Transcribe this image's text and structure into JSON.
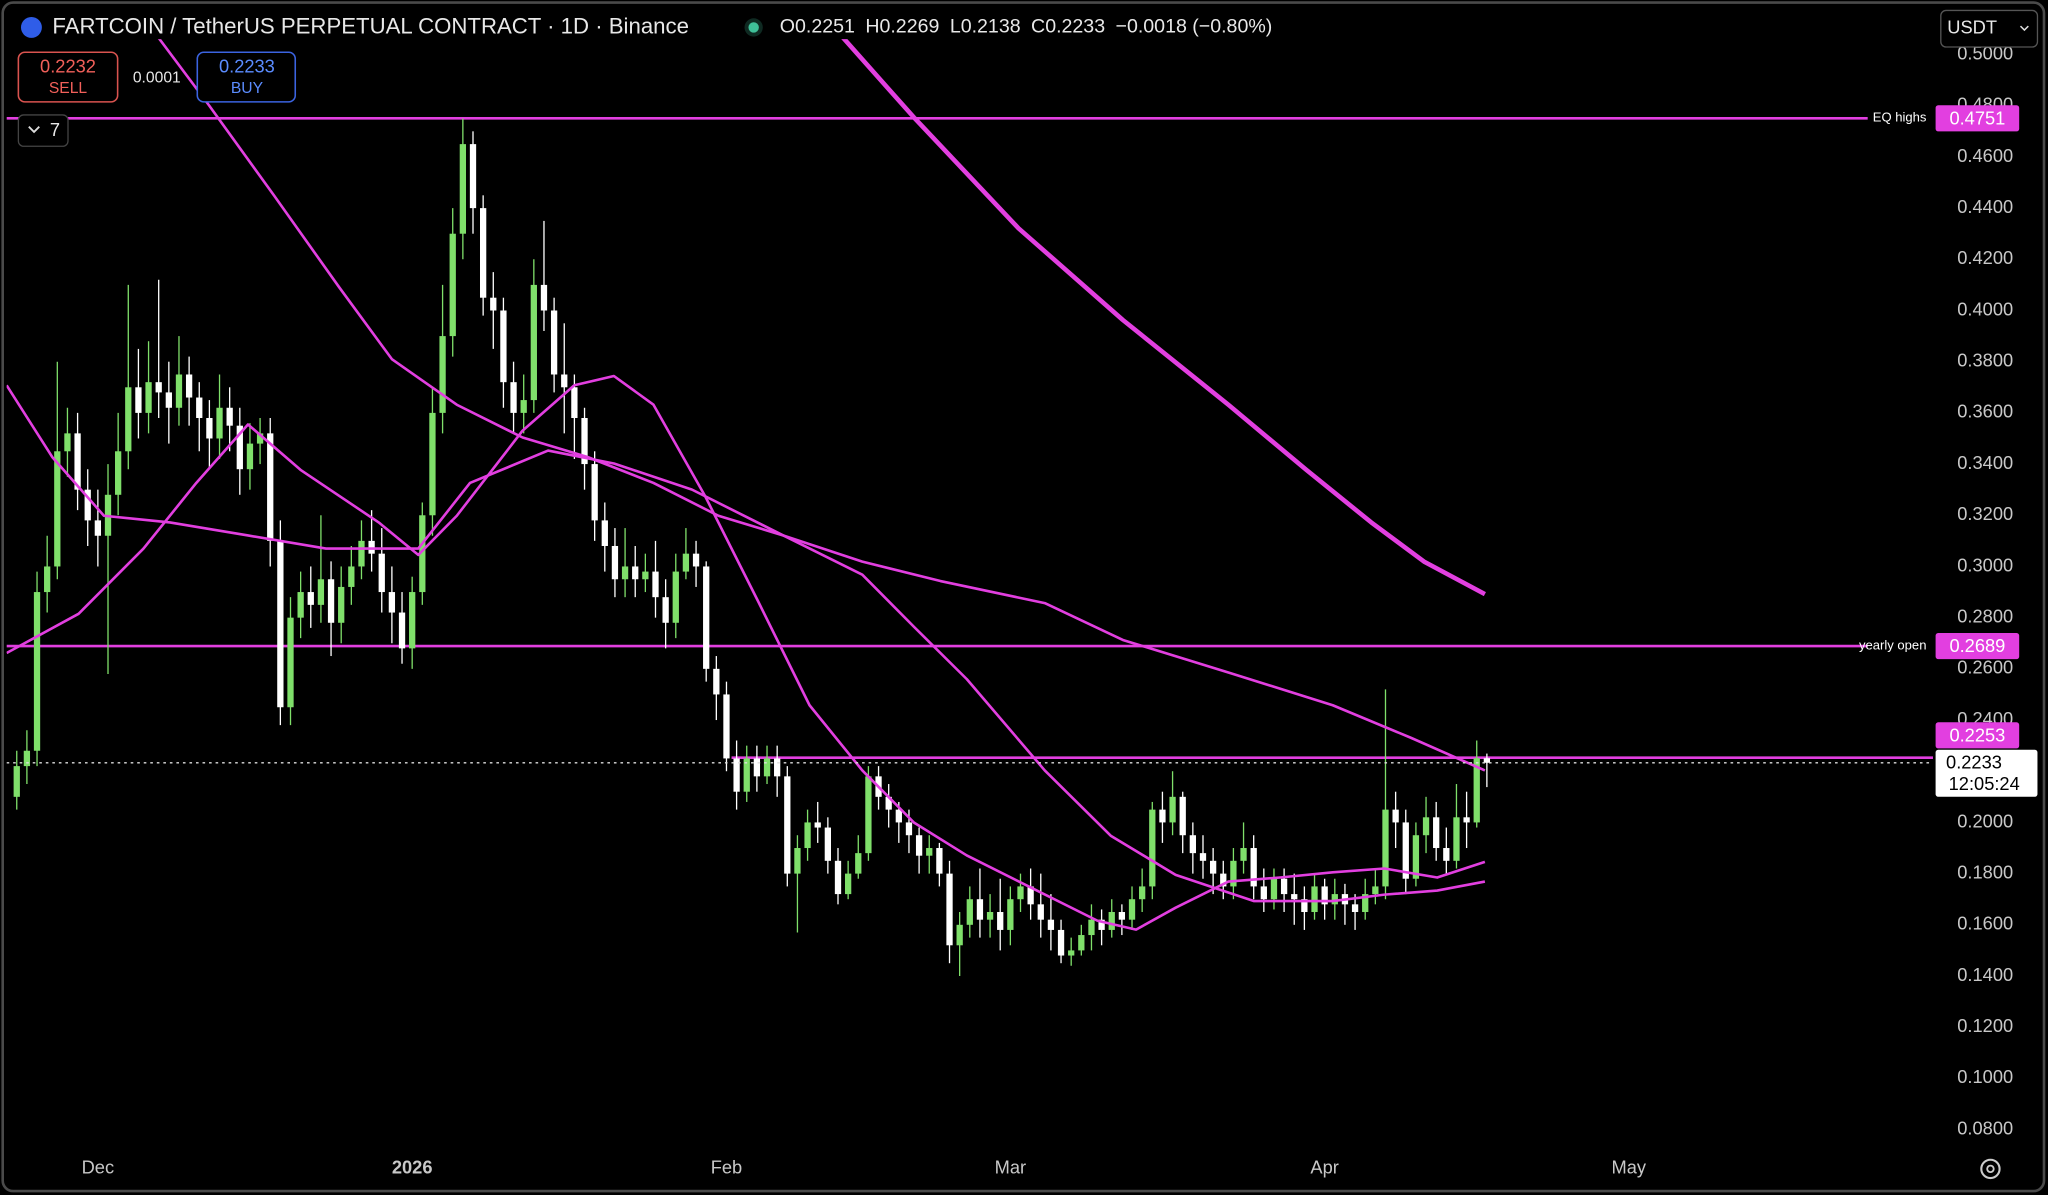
{
  "header": {
    "title": "FARTCOIN / TetherUS PERPETUAL CONTRACT · 1D · Binance",
    "ohlc_labels": [
      "O",
      "H",
      "L",
      "C"
    ],
    "change": "−0.0018 (−0.80%)"
  },
  "trade": {
    "sell_price": "0.2232",
    "sell": "SELL",
    "spread": "0.0001",
    "buy_price": "0.2233",
    "buy": "BUY"
  },
  "indicators_count": "7",
  "currency": "USDT",
  "countdown": "12:05:24",
  "chart_data": {
    "type": "candlestick",
    "up_color": "#7fdf6a",
    "down_color": "#ffffff",
    "level_color": "#e23fe0",
    "xlim": [
      -1,
      189
    ],
    "ylim": [
      0.0723,
      0.506
    ],
    "xticks": [
      {
        "value": 8,
        "label": "Dec"
      },
      {
        "value": 39,
        "label": "2026"
      },
      {
        "value": 70,
        "label": "Feb"
      },
      {
        "value": 98,
        "label": "Mar"
      },
      {
        "value": 129,
        "label": "Apr"
      },
      {
        "value": 159,
        "label": "May"
      }
    ],
    "yticks": [
      {
        "value": 0.08,
        "label": "0.0800"
      },
      {
        "value": 0.1,
        "label": "0.1000"
      },
      {
        "value": 0.12,
        "label": "0.1200"
      },
      {
        "value": 0.14,
        "label": "0.1400"
      },
      {
        "value": 0.16,
        "label": "0.1600"
      },
      {
        "value": 0.18,
        "label": "0.1800"
      },
      {
        "value": 0.2,
        "label": "0.2000"
      },
      {
        "value": 0.22,
        "label": "0.2200"
      },
      {
        "value": 0.24,
        "label": "0.2400"
      },
      {
        "value": 0.26,
        "label": "0.2600"
      },
      {
        "value": 0.28,
        "label": "0.2800"
      },
      {
        "value": 0.3,
        "label": "0.3000"
      },
      {
        "value": 0.32,
        "label": "0.3200"
      },
      {
        "value": 0.34,
        "label": "0.3400"
      },
      {
        "value": 0.36,
        "label": "0.3600"
      },
      {
        "value": 0.38,
        "label": "0.3800"
      },
      {
        "value": 0.4,
        "label": "0.4000"
      },
      {
        "value": 0.42,
        "label": "0.4200"
      },
      {
        "value": 0.44,
        "label": "0.4400"
      },
      {
        "value": 0.46,
        "label": "0.4600"
      },
      {
        "value": 0.48,
        "label": "0.4800"
      },
      {
        "value": 0.5,
        "label": "0.5000"
      }
    ],
    "open": [
      0.21,
      0.222,
      0.228,
      0.29,
      0.3,
      0.345,
      0.352,
      0.33,
      0.318,
      0.312,
      0.328,
      0.345,
      0.37,
      0.36,
      0.372,
      0.368,
      0.362,
      0.375,
      0.366,
      0.358,
      0.35,
      0.362,
      0.355,
      0.338,
      0.348,
      0.352,
      0.31,
      0.245,
      0.28,
      0.29,
      0.285,
      0.295,
      0.278,
      0.292,
      0.3,
      0.31,
      0.305,
      0.29,
      0.282,
      0.268,
      0.29,
      0.32,
      0.36,
      0.39,
      0.43,
      0.465,
      0.44,
      0.405,
      0.4,
      0.372,
      0.36,
      0.365,
      0.41,
      0.4,
      0.375,
      0.37,
      0.358,
      0.34,
      0.318,
      0.308,
      0.295,
      0.3,
      0.295,
      0.298,
      0.288,
      0.278,
      0.298,
      0.305,
      0.3,
      0.26,
      0.25,
      0.225,
      0.212,
      0.225,
      0.218,
      0.225,
      0.218,
      0.18,
      0.19,
      0.2,
      0.198,
      0.185,
      0.172,
      0.18,
      0.188,
      0.218,
      0.21,
      0.205,
      0.2,
      0.195,
      0.187,
      0.19,
      0.18,
      0.152,
      0.16,
      0.17,
      0.162,
      0.165,
      0.158,
      0.17,
      0.175,
      0.168,
      0.162,
      0.158,
      0.148,
      0.15,
      0.156,
      0.162,
      0.158,
      0.165,
      0.162,
      0.17,
      0.175,
      0.205,
      0.2,
      0.21,
      0.195,
      0.188,
      0.185,
      0.18,
      0.175,
      0.185,
      0.19,
      0.175,
      0.17,
      0.178,
      0.172,
      0.17,
      0.165,
      0.175,
      0.168,
      0.172,
      0.168,
      0.165,
      0.172,
      0.175,
      0.205,
      0.2,
      0.178,
      0.195,
      0.202,
      0.19,
      0.185,
      0.202,
      0.2,
      0.2251
    ],
    "high": [
      0.228,
      0.236,
      0.298,
      0.312,
      0.38,
      0.362,
      0.36,
      0.338,
      0.33,
      0.34,
      0.36,
      0.41,
      0.385,
      0.388,
      0.412,
      0.38,
      0.39,
      0.382,
      0.372,
      0.365,
      0.375,
      0.37,
      0.362,
      0.356,
      0.358,
      0.358,
      0.318,
      0.288,
      0.298,
      0.3,
      0.32,
      0.302,
      0.3,
      0.308,
      0.318,
      0.322,
      0.315,
      0.3,
      0.29,
      0.296,
      0.325,
      0.37,
      0.41,
      0.44,
      0.475,
      0.47,
      0.445,
      0.415,
      0.405,
      0.38,
      0.375,
      0.42,
      0.435,
      0.405,
      0.395,
      0.375,
      0.362,
      0.345,
      0.325,
      0.315,
      0.315,
      0.308,
      0.305,
      0.31,
      0.295,
      0.305,
      0.315,
      0.31,
      0.302,
      0.265,
      0.255,
      0.232,
      0.23,
      0.23,
      0.23,
      0.23,
      0.222,
      0.195,
      0.205,
      0.208,
      0.202,
      0.19,
      0.185,
      0.195,
      0.222,
      0.222,
      0.215,
      0.208,
      0.205,
      0.198,
      0.195,
      0.192,
      0.185,
      0.165,
      0.175,
      0.182,
      0.172,
      0.178,
      0.175,
      0.18,
      0.182,
      0.18,
      0.172,
      0.162,
      0.155,
      0.16,
      0.168,
      0.166,
      0.17,
      0.168,
      0.175,
      0.182,
      0.208,
      0.212,
      0.22,
      0.212,
      0.2,
      0.195,
      0.19,
      0.185,
      0.19,
      0.2,
      0.195,
      0.182,
      0.182,
      0.182,
      0.18,
      0.175,
      0.18,
      0.178,
      0.178,
      0.176,
      0.172,
      0.178,
      0.182,
      0.252,
      0.212,
      0.205,
      0.2,
      0.21,
      0.208,
      0.198,
      0.215,
      0.212,
      0.232,
      0.2269
    ],
    "low": [
      0.205,
      0.215,
      0.222,
      0.282,
      0.295,
      0.335,
      0.322,
      0.308,
      0.3,
      0.258,
      0.32,
      0.338,
      0.35,
      0.352,
      0.358,
      0.348,
      0.355,
      0.355,
      0.345,
      0.338,
      0.342,
      0.345,
      0.328,
      0.33,
      0.34,
      0.3,
      0.238,
      0.238,
      0.272,
      0.276,
      0.278,
      0.265,
      0.27,
      0.285,
      0.295,
      0.298,
      0.282,
      0.27,
      0.262,
      0.26,
      0.285,
      0.312,
      0.352,
      0.382,
      0.42,
      0.43,
      0.398,
      0.385,
      0.362,
      0.352,
      0.352,
      0.36,
      0.392,
      0.368,
      0.352,
      0.342,
      0.33,
      0.31,
      0.298,
      0.288,
      0.288,
      0.288,
      0.29,
      0.28,
      0.268,
      0.272,
      0.295,
      0.292,
      0.255,
      0.24,
      0.22,
      0.205,
      0.208,
      0.212,
      0.215,
      0.21,
      0.175,
      0.157,
      0.185,
      0.192,
      0.18,
      0.168,
      0.17,
      0.178,
      0.185,
      0.205,
      0.198,
      0.192,
      0.188,
      0.18,
      0.18,
      0.175,
      0.145,
      0.14,
      0.155,
      0.155,
      0.155,
      0.15,
      0.152,
      0.165,
      0.162,
      0.155,
      0.15,
      0.145,
      0.144,
      0.148,
      0.15,
      0.152,
      0.155,
      0.156,
      0.158,
      0.165,
      0.17,
      0.192,
      0.195,
      0.188,
      0.18,
      0.178,
      0.172,
      0.17,
      0.17,
      0.18,
      0.17,
      0.165,
      0.166,
      0.165,
      0.16,
      0.158,
      0.162,
      0.162,
      0.162,
      0.16,
      0.158,
      0.162,
      0.168,
      0.17,
      0.19,
      0.172,
      0.175,
      0.188,
      0.185,
      0.18,
      0.182,
      0.19,
      0.198,
      0.2138
    ],
    "close": [
      0.222,
      0.228,
      0.29,
      0.3,
      0.345,
      0.352,
      0.33,
      0.318,
      0.312,
      0.328,
      0.345,
      0.37,
      0.36,
      0.372,
      0.368,
      0.362,
      0.375,
      0.366,
      0.358,
      0.35,
      0.362,
      0.355,
      0.338,
      0.348,
      0.352,
      0.31,
      0.245,
      0.28,
      0.29,
      0.285,
      0.295,
      0.278,
      0.292,
      0.3,
      0.31,
      0.305,
      0.29,
      0.282,
      0.268,
      0.29,
      0.32,
      0.36,
      0.39,
      0.43,
      0.465,
      0.44,
      0.405,
      0.4,
      0.372,
      0.36,
      0.365,
      0.41,
      0.4,
      0.375,
      0.37,
      0.358,
      0.34,
      0.318,
      0.308,
      0.295,
      0.3,
      0.295,
      0.298,
      0.288,
      0.278,
      0.298,
      0.305,
      0.3,
      0.26,
      0.25,
      0.225,
      0.212,
      0.225,
      0.218,
      0.225,
      0.218,
      0.18,
      0.19,
      0.2,
      0.198,
      0.185,
      0.172,
      0.18,
      0.188,
      0.218,
      0.21,
      0.205,
      0.2,
      0.195,
      0.187,
      0.19,
      0.18,
      0.152,
      0.16,
      0.17,
      0.162,
      0.165,
      0.158,
      0.17,
      0.175,
      0.168,
      0.162,
      0.158,
      0.148,
      0.15,
      0.156,
      0.162,
      0.158,
      0.165,
      0.162,
      0.17,
      0.175,
      0.205,
      0.2,
      0.21,
      0.195,
      0.188,
      0.185,
      0.18,
      0.175,
      0.185,
      0.19,
      0.175,
      0.17,
      0.178,
      0.172,
      0.17,
      0.165,
      0.175,
      0.168,
      0.172,
      0.168,
      0.165,
      0.172,
      0.175,
      0.205,
      0.2,
      0.178,
      0.195,
      0.202,
      0.19,
      0.185,
      0.202,
      0.2,
      0.2251,
      0.2233
    ],
    "lines": [
      {
        "color": "#e23fe0",
        "width": 2,
        "x": [
          -1.0,
          6.1,
          12.5,
          17.7,
          22.8,
          28.0,
          35.7,
          39.6,
          43.4,
          49.9,
          55.0,
          58.9,
          62.8,
          67.9,
          73.1,
          78.2,
          83.4,
          88.5,
          93.7,
          100.1,
          106.6,
          110.4,
          114.3,
          119.5,
          124.6,
          129.8,
          134.9,
          140.1,
          144.8
        ],
        "values": [
          0.2662,
          0.2815,
          0.307,
          0.3326,
          0.3555,
          0.3377,
          0.3172,
          0.3045,
          0.3198,
          0.3531,
          0.3708,
          0.3744,
          0.3632,
          0.3274,
          0.2866,
          0.2458,
          0.2203,
          0.1999,
          0.1871,
          0.1744,
          0.1616,
          0.1581,
          0.1667,
          0.1769,
          0.1785,
          0.1805,
          0.182,
          0.1785,
          0.1846
        ]
      },
      {
        "color": "#e23fe0",
        "width": 2,
        "x": [
          -1.0,
          3.5,
          8.6,
          15.1,
          22.8,
          30.5,
          39.6,
          44.7,
          52.4,
          58.9,
          66.6,
          75.6,
          83.4,
          91.1,
          101.4,
          109.1,
          119.5,
          129.8,
          137.5,
          144.8
        ],
        "values": [
          0.3708,
          0.3428,
          0.3198,
          0.3172,
          0.3121,
          0.307,
          0.307,
          0.3326,
          0.3453,
          0.3402,
          0.33,
          0.3121,
          0.3019,
          0.2943,
          0.2857,
          0.2713,
          0.2586,
          0.2458,
          0.2331,
          0.2203
        ]
      },
      {
        "color": "#e23fe0",
        "width": 2,
        "x": [
          11.2,
          18.9,
          25.4,
          31.8,
          37.0,
          43.4,
          49.9,
          56.3,
          62.8,
          69.2,
          75.6,
          83.4,
          88.5,
          93.7,
          101.4,
          107.9,
          114.3,
          122.0,
          129.8,
          134.9,
          140.1,
          144.8
        ],
        "values": [
          0.5213,
          0.4805,
          0.4448,
          0.4091,
          0.381,
          0.3632,
          0.3504,
          0.3428,
          0.3326,
          0.3198,
          0.3121,
          0.2968,
          0.2764,
          0.256,
          0.2203,
          0.1948,
          0.1795,
          0.1693,
          0.1693,
          0.1718,
          0.1734,
          0.1769
        ]
      },
      {
        "color": "#e23fe0",
        "width": 3.5,
        "x": [
          78.2,
          88.5,
          98.8,
          109.1,
          119.5,
          127.2,
          133.6,
          138.8,
          144.8
        ],
        "values": [
          0.5213,
          0.4754,
          0.4321,
          0.3963,
          0.3632,
          0.3377,
          0.3172,
          0.3019,
          0.2892
        ]
      }
    ],
    "levels": [
      {
        "label": "EQ highs",
        "value": 0.4751
      },
      {
        "label": "yearly open",
        "value": 0.2689
      },
      {
        "value": 0.2253
      }
    ]
  }
}
